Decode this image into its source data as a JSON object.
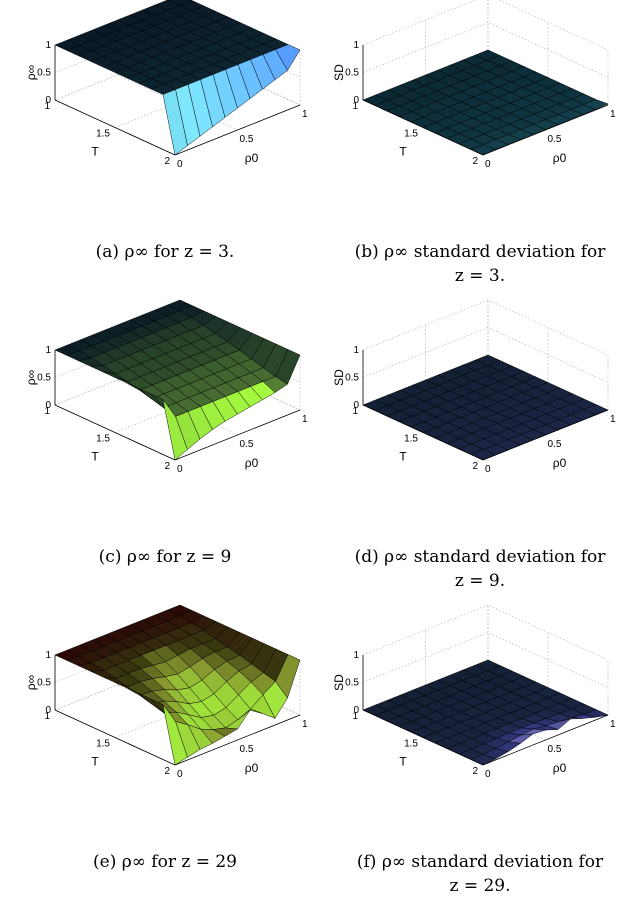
{
  "chart_data": [
    {
      "type": "surface3d",
      "caption_letter": "(a)",
      "caption_text": "ρ∞ for z = 3.",
      "ylabel": "ρ∞",
      "x_label": "T",
      "y_label": "ρ0",
      "x_ticks": [
        "1",
        "1.5",
        "2"
      ],
      "y_ticks": [
        "0",
        "0.5",
        "1"
      ],
      "z_ticks": [
        "0",
        "0.5",
        "1"
      ],
      "xlim": [
        1,
        2
      ],
      "ylim": [
        0,
        1
      ],
      "zlim": [
        0,
        1
      ],
      "T": [
        1,
        1.1,
        1.2,
        1.3,
        1.4,
        1.5,
        1.6,
        1.7,
        1.8,
        1.9,
        2
      ],
      "rho0": [
        0,
        0.1,
        0.2,
        0.3,
        0.4,
        0.5,
        0.6,
        0.7,
        0.8,
        0.9,
        1
      ],
      "values": [
        [
          1,
          1,
          1,
          1,
          1,
          1,
          1,
          1,
          1,
          1,
          1
        ],
        [
          1,
          1,
          1,
          1,
          1,
          1,
          1,
          1,
          1,
          1,
          1
        ],
        [
          1,
          1,
          1,
          1,
          1,
          1,
          1,
          1,
          1,
          1,
          1
        ],
        [
          1,
          1,
          1,
          1,
          1,
          1,
          1,
          1,
          1,
          1,
          1
        ],
        [
          1,
          1,
          1,
          1,
          1,
          1,
          1,
          1,
          1,
          1,
          1
        ],
        [
          1,
          1,
          1,
          1,
          1,
          1,
          1,
          1,
          1,
          1,
          1
        ],
        [
          1,
          1,
          1,
          1,
          1,
          1,
          1,
          1,
          1,
          1,
          1
        ],
        [
          1,
          1,
          1,
          1,
          1,
          1,
          1,
          1,
          1,
          1,
          1
        ],
        [
          1,
          1,
          1,
          1,
          1,
          1,
          1,
          1,
          1,
          1,
          1
        ],
        [
          1,
          1,
          1,
          1,
          1,
          1,
          1,
          1,
          1,
          1,
          1
        ],
        [
          0,
          0.08,
          0.16,
          0.24,
          0.32,
          0.4,
          0.48,
          0.56,
          0.64,
          0.72,
          1
        ]
      ],
      "colormap": [
        "#0a1a26",
        "#0e3440",
        "#2a6a7a",
        "#7fe8ff",
        "#3050ff"
      ]
    },
    {
      "type": "surface3d",
      "caption_letter": "(b)",
      "caption_text": "ρ∞ standard deviation for z = 3.",
      "ylabel": "SD",
      "x_label": "T",
      "y_label": "ρ0",
      "x_ticks": [
        "1",
        "1.5",
        "2"
      ],
      "y_ticks": [
        "0",
        "0.5",
        "1"
      ],
      "z_ticks": [
        "0",
        "0.5",
        "1"
      ],
      "xlim": [
        1,
        2
      ],
      "ylim": [
        0,
        1
      ],
      "zlim": [
        0,
        1
      ],
      "T": [
        1,
        1.1,
        1.2,
        1.3,
        1.4,
        1.5,
        1.6,
        1.7,
        1.8,
        1.9,
        2
      ],
      "rho0": [
        0,
        0.1,
        0.2,
        0.3,
        0.4,
        0.5,
        0.6,
        0.7,
        0.8,
        0.9,
        1
      ],
      "values": [
        [
          0,
          0,
          0,
          0,
          0,
          0,
          0,
          0,
          0,
          0,
          0
        ],
        [
          0,
          0,
          0,
          0,
          0,
          0,
          0,
          0,
          0,
          0,
          0
        ],
        [
          0,
          0,
          0,
          0,
          0,
          0,
          0,
          0,
          0,
          0,
          0
        ],
        [
          0,
          0,
          0,
          0,
          0,
          0,
          0,
          0,
          0,
          0,
          0
        ],
        [
          0,
          0,
          0,
          0,
          0,
          0,
          0,
          0,
          0,
          0,
          0
        ],
        [
          0,
          0,
          0,
          0,
          0,
          0,
          0,
          0,
          0,
          0,
          0
        ],
        [
          0,
          0,
          0,
          0,
          0,
          0,
          0,
          0,
          0,
          0,
          0
        ],
        [
          0,
          0,
          0,
          0,
          0,
          0,
          0,
          0,
          0,
          0,
          0
        ],
        [
          0,
          0,
          0,
          0,
          0,
          0,
          0,
          0,
          0,
          0,
          0
        ],
        [
          0,
          0,
          0,
          0,
          0,
          0,
          0,
          0,
          0,
          0,
          0
        ],
        [
          0,
          0.01,
          0.01,
          0.01,
          0.01,
          0.01,
          0.01,
          0.01,
          0.01,
          0.01,
          0.02
        ]
      ],
      "colormap": [
        "#0a1a26",
        "#0e3440",
        "#2a6a7a",
        "#7fe8ff",
        "#3050ff"
      ]
    },
    {
      "type": "surface3d",
      "caption_letter": "(c)",
      "caption_text": "ρ∞ for z = 9",
      "ylabel": "ρ∞",
      "x_label": "T",
      "y_label": "ρ0",
      "x_ticks": [
        "1",
        "1.5",
        "2"
      ],
      "y_ticks": [
        "0",
        "0.5",
        "1"
      ],
      "z_ticks": [
        "0",
        "0.5",
        "1"
      ],
      "xlim": [
        1,
        2
      ],
      "ylim": [
        0,
        1
      ],
      "zlim": [
        0,
        1
      ],
      "T": [
        1,
        1.1,
        1.2,
        1.3,
        1.4,
        1.5,
        1.6,
        1.7,
        1.8,
        1.9,
        2
      ],
      "rho0": [
        0,
        0.1,
        0.2,
        0.3,
        0.4,
        0.5,
        0.6,
        0.7,
        0.8,
        0.9,
        1
      ],
      "values": [
        [
          1,
          1,
          1,
          1,
          1,
          1,
          1,
          1,
          1,
          1,
          1
        ],
        [
          1,
          0.99,
          0.99,
          0.99,
          0.99,
          0.99,
          0.99,
          0.99,
          0.99,
          0.99,
          1
        ],
        [
          1,
          0.97,
          0.97,
          0.97,
          0.97,
          0.97,
          0.97,
          0.97,
          0.97,
          0.97,
          1
        ],
        [
          1,
          0.93,
          0.93,
          0.93,
          0.93,
          0.93,
          0.93,
          0.93,
          0.93,
          0.93,
          1
        ],
        [
          1,
          0.88,
          0.88,
          0.88,
          0.88,
          0.88,
          0.88,
          0.88,
          0.88,
          0.88,
          1
        ],
        [
          1,
          0.83,
          0.83,
          0.83,
          0.83,
          0.83,
          0.83,
          0.83,
          0.83,
          0.83,
          1
        ],
        [
          1,
          0.78,
          0.78,
          0.78,
          0.78,
          0.78,
          0.78,
          0.78,
          0.78,
          0.78,
          1
        ],
        [
          1,
          0.72,
          0.72,
          0.72,
          0.72,
          0.72,
          0.72,
          0.72,
          0.72,
          0.72,
          1
        ],
        [
          1,
          0.66,
          0.66,
          0.66,
          0.66,
          0.66,
          0.66,
          0.66,
          0.66,
          0.66,
          1
        ],
        [
          1,
          0.6,
          0.6,
          0.6,
          0.6,
          0.6,
          0.6,
          0.6,
          0.6,
          0.6,
          1
        ],
        [
          0,
          0.1,
          0.2,
          0.28,
          0.34,
          0.38,
          0.42,
          0.46,
          0.5,
          0.56,
          1
        ]
      ],
      "colormap": [
        "#0a1a26",
        "#2c4a2a",
        "#6a9a3a",
        "#a8ff40",
        "#3050ff"
      ]
    },
    {
      "type": "surface3d",
      "caption_letter": "(d)",
      "caption_text": "ρ∞ standard deviation for z = 9.",
      "ylabel": "SD",
      "x_label": "T",
      "y_label": "ρ0",
      "x_ticks": [
        "1",
        "1.5",
        "2"
      ],
      "y_ticks": [
        "0",
        "0.5",
        "1"
      ],
      "z_ticks": [
        "0",
        "0.5",
        "1"
      ],
      "xlim": [
        1,
        2
      ],
      "ylim": [
        0,
        1
      ],
      "zlim": [
        0,
        1
      ],
      "T": [
        1,
        1.1,
        1.2,
        1.3,
        1.4,
        1.5,
        1.6,
        1.7,
        1.8,
        1.9,
        2
      ],
      "rho0": [
        0,
        0.1,
        0.2,
        0.3,
        0.4,
        0.5,
        0.6,
        0.7,
        0.8,
        0.9,
        1
      ],
      "values": [
        [
          0,
          0,
          0,
          0,
          0,
          0,
          0,
          0,
          0,
          0,
          0
        ],
        [
          0,
          0,
          0,
          0,
          0,
          0,
          0,
          0,
          0,
          0,
          0
        ],
        [
          0,
          0,
          0,
          0,
          0,
          0,
          0,
          0,
          0,
          0,
          0
        ],
        [
          0,
          0,
          0,
          0,
          0,
          0,
          0,
          0,
          0,
          0,
          0
        ],
        [
          0,
          0,
          0,
          0,
          0,
          0,
          0,
          0,
          0,
          0,
          0
        ],
        [
          0,
          0,
          0,
          0,
          0,
          0,
          0,
          0,
          0,
          0,
          0
        ],
        [
          0,
          0,
          0,
          0,
          0,
          0,
          0,
          0,
          0,
          0,
          0
        ],
        [
          0,
          0,
          0,
          0,
          0,
          0,
          0,
          0,
          0,
          0,
          0
        ],
        [
          0,
          0,
          0,
          0,
          0,
          0,
          0,
          0,
          0,
          0,
          0
        ],
        [
          0,
          0,
          0,
          0,
          0,
          0,
          0,
          0,
          0,
          0,
          0
        ],
        [
          0,
          0,
          0,
          0,
          0,
          0,
          0,
          0,
          0,
          0,
          0
        ]
      ],
      "colormap": [
        "#0a1a26",
        "#1a2440",
        "#3a3a8a",
        "#7fe8ff",
        "#3050ff"
      ]
    },
    {
      "type": "surface3d",
      "caption_letter": "(e)",
      "caption_text": "ρ∞ for z = 29",
      "ylabel": "ρ∞",
      "x_label": "T",
      "y_label": "ρ0",
      "x_ticks": [
        "1",
        "1.5",
        "2"
      ],
      "y_ticks": [
        "0",
        "0.5",
        "1"
      ],
      "z_ticks": [
        "0",
        "0.5",
        "1"
      ],
      "xlim": [
        1,
        2
      ],
      "ylim": [
        0,
        1
      ],
      "zlim": [
        0,
        1
      ],
      "T": [
        1,
        1.1,
        1.2,
        1.3,
        1.4,
        1.5,
        1.6,
        1.7,
        1.8,
        1.9,
        2
      ],
      "rho0": [
        0,
        0.1,
        0.2,
        0.3,
        0.4,
        0.5,
        0.6,
        0.7,
        0.8,
        0.9,
        1
      ],
      "values": [
        [
          1,
          1,
          1,
          1,
          1,
          1,
          1,
          1,
          1,
          1,
          1
        ],
        [
          1,
          0.99,
          0.99,
          0.99,
          0.99,
          0.99,
          0.99,
          0.99,
          0.99,
          0.99,
          1
        ],
        [
          1,
          0.97,
          0.97,
          0.97,
          0.97,
          0.97,
          0.97,
          0.97,
          0.97,
          0.97,
          1
        ],
        [
          1,
          0.93,
          0.93,
          0.93,
          0.93,
          0.93,
          0.93,
          0.93,
          0.93,
          0.93,
          1
        ],
        [
          1,
          0.88,
          0.88,
          0.88,
          0.85,
          0.82,
          0.85,
          0.88,
          0.88,
          0.88,
          1
        ],
        [
          1,
          0.83,
          0.83,
          0.8,
          0.74,
          0.7,
          0.74,
          0.8,
          0.83,
          0.83,
          1
        ],
        [
          1,
          0.78,
          0.76,
          0.7,
          0.6,
          0.55,
          0.6,
          0.7,
          0.76,
          0.78,
          1
        ],
        [
          1,
          0.72,
          0.68,
          0.58,
          0.45,
          0.4,
          0.45,
          0.58,
          0.68,
          0.72,
          1
        ],
        [
          1,
          0.66,
          0.58,
          0.44,
          0.3,
          0.25,
          0.3,
          0.44,
          0.58,
          0.66,
          1
        ],
        [
          1,
          0.6,
          0.45,
          0.28,
          0.18,
          0.12,
          0.18,
          0.28,
          0.45,
          0.6,
          1
        ],
        [
          0,
          0.05,
          0.1,
          0.12,
          0.16,
          0.2,
          0.45,
          0.3,
          0.12,
          0.4,
          1
        ]
      ],
      "colormap": [
        "#2a0606",
        "#3a3a10",
        "#8a9a30",
        "#a8ff40",
        "#7fe8ff"
      ]
    },
    {
      "type": "surface3d",
      "caption_letter": "(f)",
      "caption_text": "ρ∞ standard deviation for z = 29.",
      "ylabel": "SD",
      "x_label": "T",
      "y_label": "ρ0",
      "x_ticks": [
        "1",
        "1.5",
        "2"
      ],
      "y_ticks": [
        "0",
        "0.5",
        "1"
      ],
      "z_ticks": [
        "0",
        "0.5",
        "1"
      ],
      "xlim": [
        1,
        2
      ],
      "ylim": [
        0,
        1
      ],
      "zlim": [
        0,
        1
      ],
      "T": [
        1,
        1.1,
        1.2,
        1.3,
        1.4,
        1.5,
        1.6,
        1.7,
        1.8,
        1.9,
        2
      ],
      "rho0": [
        0,
        0.1,
        0.2,
        0.3,
        0.4,
        0.5,
        0.6,
        0.7,
        0.8,
        0.9,
        1
      ],
      "values": [
        [
          0,
          0,
          0,
          0,
          0,
          0,
          0,
          0,
          0,
          0,
          0
        ],
        [
          0,
          0,
          0,
          0,
          0,
          0,
          0,
          0,
          0,
          0,
          0
        ],
        [
          0,
          0,
          0,
          0,
          0,
          0,
          0,
          0,
          0,
          0,
          0
        ],
        [
          0,
          0,
          0,
          0,
          0,
          0,
          0,
          0,
          0,
          0,
          0
        ],
        [
          0,
          0,
          0,
          0,
          0,
          0,
          0,
          0,
          0,
          0,
          0
        ],
        [
          0,
          0,
          0,
          0,
          0,
          0,
          0,
          0,
          0,
          0,
          0
        ],
        [
          0,
          0,
          0,
          0,
          0,
          0,
          0,
          0,
          0,
          0,
          0
        ],
        [
          0,
          0,
          0,
          0,
          0,
          0,
          0,
          0,
          0,
          0,
          0
        ],
        [
          0,
          0,
          0,
          0.01,
          0.02,
          0.02,
          0.02,
          0.01,
          0.01,
          0,
          0
        ],
        [
          0,
          0,
          0.02,
          0.05,
          0.08,
          0.1,
          0.07,
          0.05,
          0.03,
          0,
          0
        ],
        [
          0,
          0.02,
          0.06,
          0.12,
          0.2,
          0.18,
          0.1,
          0.2,
          0.12,
          0.05,
          0
        ]
      ],
      "colormap": [
        "#0a1a26",
        "#1a2440",
        "#3a3a8a",
        "#c8c8ff",
        "#3050ff"
      ]
    }
  ]
}
